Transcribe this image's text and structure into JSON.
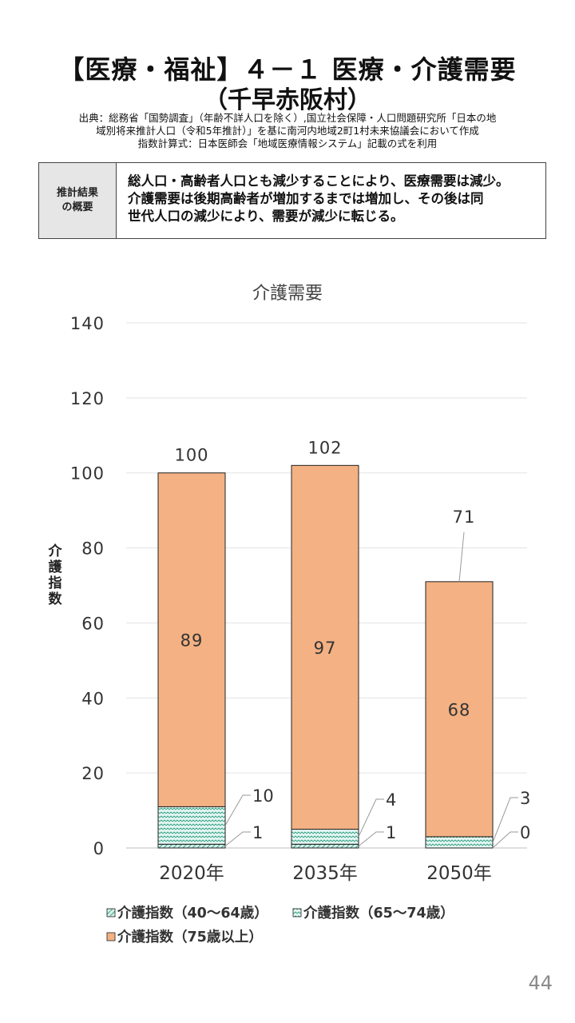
{
  "header": {
    "title_line1": "【医療・福祉】４－１ 医療・介護需要",
    "title_line2": "（千早赤阪村）",
    "source_line1": "出典：総務省「国勢調査」（年齢不詳人口を除く）,国立社会保障・人口問題研究所「日本の地",
    "source_line2": "域別将来推計人口（令和5年推計）」を基に南河内地域2町1村未来協議会において作成",
    "source_line3": "指数計算式：日本医師会「地域医療情報システム」記載の式を利用"
  },
  "summary": {
    "label": "推計結果\nの概要",
    "text_line1": "総人口・高齢者人口とも減少することにより、医療需要は減少。",
    "text_line2": "介護需要は後期高齢者が増加するまでは増加し、その後は同",
    "text_line3": "世代人口の減少により、需要が減少に転じる。"
  },
  "chart_data": {
    "type": "bar",
    "stacked": true,
    "title": "介護需要",
    "ylabel": "介護指数",
    "xlabel": "",
    "ylim": [
      0,
      140
    ],
    "yticks": [
      "0",
      "20",
      "40",
      "60",
      "80",
      "100",
      "120",
      "140"
    ],
    "categories": [
      "2020年",
      "2035年",
      "2050年"
    ],
    "series": [
      {
        "name": "介護指数（40～64歳）",
        "values": [
          1,
          1,
          0
        ],
        "labels": [
          "1",
          "1",
          "0"
        ],
        "color": "#a6d9cf"
      },
      {
        "name": "介護指数（65～74歳）",
        "values": [
          10,
          4,
          3
        ],
        "labels": [
          "10",
          "4",
          "3"
        ],
        "color": "#c9eee6"
      },
      {
        "name": "介護指数（75歳以上）",
        "values": [
          89,
          97,
          68
        ],
        "labels": [
          "89",
          "97",
          "68"
        ],
        "color": "#f4b183"
      }
    ],
    "totals": [
      "100",
      "102",
      "71"
    ],
    "grid": true,
    "legend_position": "bottom"
  },
  "page_number": "44"
}
